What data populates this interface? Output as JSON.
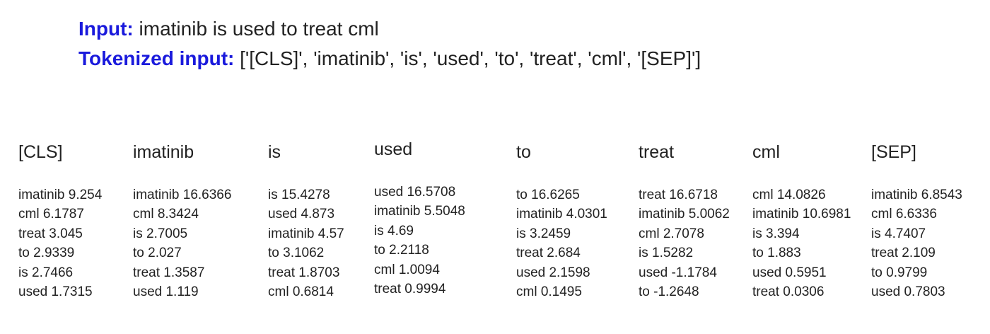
{
  "header": {
    "input_label": "Input:",
    "input_value": "imatinib is used to treat cml",
    "tokenized_label": "Tokenized input:",
    "tokenized_value": "['[CLS]', 'imatinib', 'is', 'used', 'to', 'treat', 'cml', '[SEP]']"
  },
  "colors": {
    "label_blue": "#1a1adc",
    "text": "#222222",
    "background": "#ffffff"
  },
  "columns": [
    {
      "title": "[CLS]",
      "rows": [
        "imatinib 9.254",
        "cml 6.1787",
        "treat 3.045",
        "to 2.9339",
        "is 2.7466",
        "used 1.7315"
      ]
    },
    {
      "title": "imatinib",
      "rows": [
        "imatinib 16.6366",
        "cml 8.3424",
        "is 2.7005",
        "to 2.027",
        "treat 1.3587",
        "used 1.119"
      ]
    },
    {
      "title": "is",
      "rows": [
        "is 15.4278",
        "used 4.873",
        "imatinib 4.57",
        "to 3.1062",
        "treat 1.8703",
        "cml 0.6814"
      ]
    },
    {
      "title": "used",
      "rows": [
        "used 16.5708",
        "imatinib 5.5048",
        "is 4.69",
        "to 2.2118",
        "cml 1.0094",
        "treat 0.9994"
      ]
    },
    {
      "title": "to",
      "rows": [
        "to 16.6265",
        "imatinib 4.0301",
        "is 3.2459",
        "treat 2.684",
        "used 2.1598",
        "cml 0.1495"
      ]
    },
    {
      "title": "treat",
      "rows": [
        "treat 16.6718",
        "imatinib 5.0062",
        "cml 2.7078",
        "is 1.5282",
        "used -1.1784",
        "to -1.2648"
      ]
    },
    {
      "title": "cml",
      "rows": [
        "cml 14.0826",
        "imatinib 10.6981",
        "is 3.394",
        "to 1.883",
        "used 0.5951",
        "treat 0.0306"
      ]
    },
    {
      "title": "[SEP]",
      "rows": [
        "imatinib 6.8543",
        "cml 6.6336",
        "is 4.7407",
        "treat 2.109",
        "to 0.9799",
        "used 0.7803"
      ]
    }
  ]
}
